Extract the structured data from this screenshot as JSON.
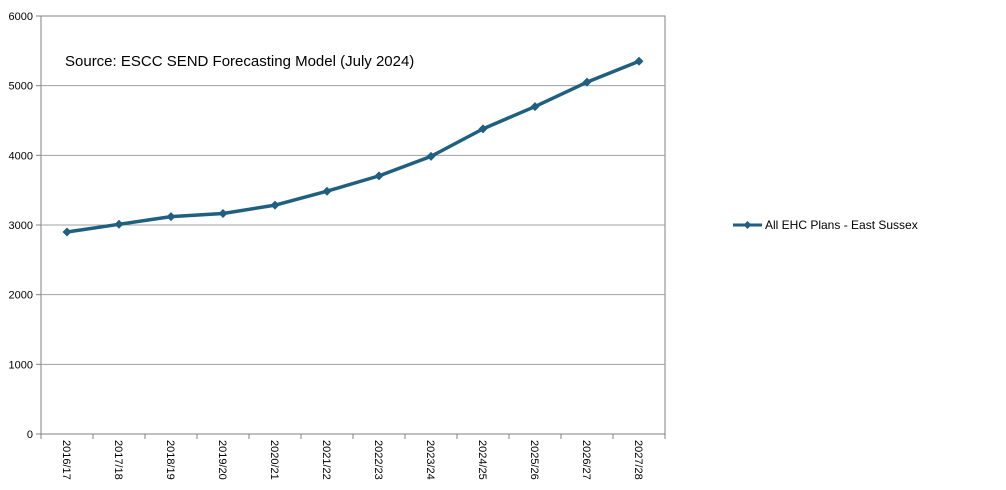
{
  "chart_data": {
    "type": "line",
    "annotation": "Source: ESCC SEND Forecasting Model (July 2024)",
    "categories": [
      "2016/17",
      "2017/18",
      "2018/19",
      "2019/20",
      "2020/21",
      "2021/22",
      "2022/23",
      "2023/24",
      "2024/25",
      "2025/26",
      "2026/27",
      "2027/28"
    ],
    "series": [
      {
        "name": "All EHC Plans - East Sussex",
        "values": [
          2900,
          3010,
          3120,
          3165,
          3285,
          3485,
          3705,
          3985,
          4380,
          4700,
          5050,
          5350
        ],
        "color": "#1f5f7f",
        "marker": "diamond"
      }
    ],
    "yticks": [
      0,
      1000,
      2000,
      3000,
      4000,
      5000,
      6000
    ],
    "ylim": [
      0,
      6000
    ],
    "grid": "horizontal",
    "legend_position": "right",
    "xlabel": "",
    "ylabel": ""
  }
}
